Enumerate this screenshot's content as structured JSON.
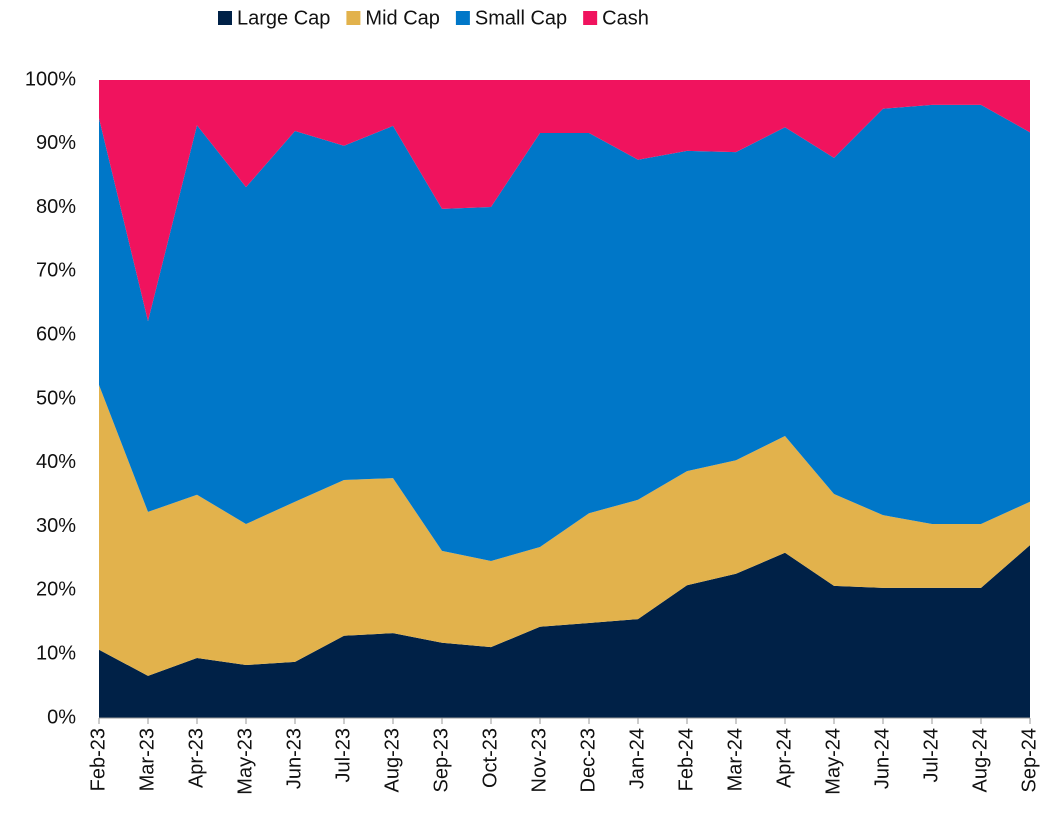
{
  "chart_data": {
    "type": "stacked_area",
    "categories": [
      "Feb-23",
      "Mar-23",
      "Apr-23",
      "May-23",
      "Jun-23",
      "Jul-23",
      "Aug-23",
      "Sep-23",
      "Oct-23",
      "Nov-23",
      "Dec-23",
      "Jan-24",
      "Feb-24",
      "Mar-24",
      "Apr-24",
      "May-24",
      "Jun-24",
      "Jul-24",
      "Aug-24",
      "Sep-24"
    ],
    "series": [
      {
        "name": "Large Cap",
        "color": "#002147",
        "values": [
          10.7,
          6.6,
          9.4,
          8.3,
          8.8,
          12.9,
          13.3,
          11.8,
          11.1,
          14.3,
          14.9,
          15.5,
          20.8,
          22.6,
          25.9,
          20.7,
          20.4,
          20.4,
          20.4,
          27.1
        ]
      },
      {
        "name": "Mid Cap",
        "color": "#e2b24c",
        "values": [
          41.5,
          25.7,
          25.6,
          22.1,
          25.1,
          24.4,
          24.3,
          14.4,
          13.5,
          12.5,
          17.2,
          18.7,
          17.9,
          17.8,
          18.3,
          14.4,
          11.4,
          10.0,
          10.0,
          6.8
        ]
      },
      {
        "name": "Small Cap",
        "color": "#0077c8",
        "values": [
          41.8,
          29.9,
          57.9,
          52.8,
          58.1,
          52.4,
          55.2,
          53.6,
          55.5,
          64.9,
          59.6,
          53.3,
          50.2,
          48.3,
          48.4,
          52.7,
          63.7,
          65.7,
          65.7,
          57.9
        ]
      },
      {
        "name": "Cash",
        "color": "#f0135e",
        "values": [
          6.0,
          37.8,
          7.1,
          16.8,
          8.0,
          10.3,
          7.2,
          20.2,
          19.9,
          8.3,
          8.3,
          12.5,
          11.1,
          11.3,
          7.4,
          12.2,
          4.5,
          3.9,
          3.9,
          8.2
        ]
      }
    ],
    "ylim": [
      0,
      100
    ],
    "yticks": [
      {
        "value": 0,
        "label": "0%"
      },
      {
        "value": 10,
        "label": "10%"
      },
      {
        "value": 20,
        "label": "20%"
      },
      {
        "value": 30,
        "label": "30%"
      },
      {
        "value": 40,
        "label": "40%"
      },
      {
        "value": 50,
        "label": "50%"
      },
      {
        "value": 60,
        "label": "60%"
      },
      {
        "value": 70,
        "label": "70%"
      },
      {
        "value": 80,
        "label": "80%"
      },
      {
        "value": 90,
        "label": "90%"
      },
      {
        "value": 100,
        "label": "100%"
      }
    ],
    "legend": "top"
  }
}
